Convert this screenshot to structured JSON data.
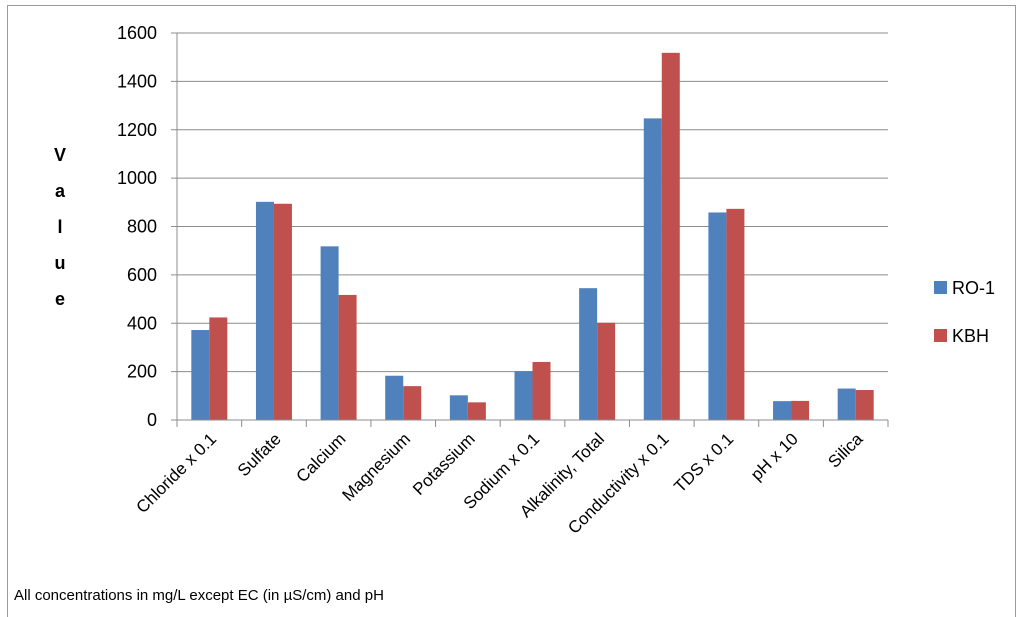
{
  "chart_data": {
    "type": "bar",
    "categories": [
      "Chloride x 0.1",
      "Sulfate",
      "Calcium",
      "Magnesium",
      "Potassium",
      "Sodium x 0.1",
      "Alkalinity, Total",
      "Conductivity x 0.1",
      "TDS x 0.1",
      "pH x 10",
      "Silica"
    ],
    "series": [
      {
        "name": "RO-1",
        "values": [
          372,
          902,
          718,
          183,
          102,
          202,
          545,
          1247,
          858,
          78,
          130
        ],
        "color": "#4f81bd"
      },
      {
        "name": "KBH",
        "values": [
          424,
          894,
          517,
          140,
          73,
          240,
          402,
          1518,
          873,
          79,
          124
        ],
        "color": "#c0504d"
      }
    ],
    "ylabel_letters": [
      "V",
      "a",
      "l",
      "u",
      "e"
    ],
    "ylim": [
      0,
      1600
    ],
    "yticks": [
      0,
      200,
      400,
      600,
      800,
      1000,
      1200,
      1400,
      1600
    ],
    "grid": true,
    "legend_position": "right",
    "note": "All concentrations in mg/L except EC (in µS/cm) and pH"
  }
}
